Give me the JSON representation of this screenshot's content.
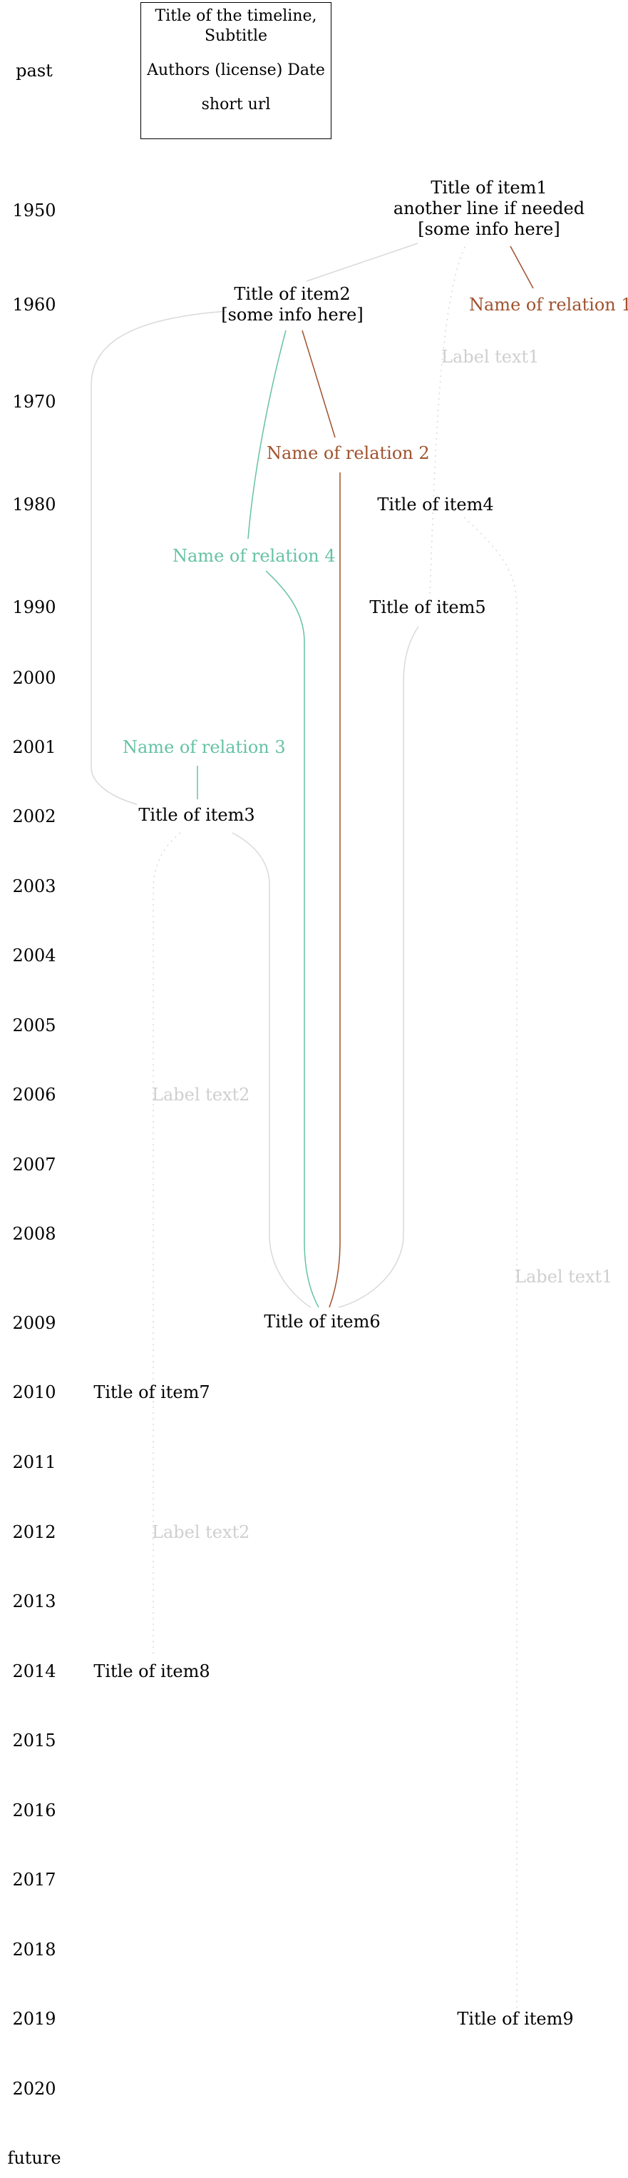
{
  "header": {
    "title_line1": "Title of the timeline,",
    "title_line2": "Subtitle",
    "authors": "Authors (license) Date",
    "url": "short url"
  },
  "years": {
    "past": "past",
    "y1950": "1950",
    "y1960": "1960",
    "y1970": "1970",
    "y1980": "1980",
    "y1990": "1990",
    "y2000": "2000",
    "y2001": "2001",
    "y2002": "2002",
    "y2003": "2003",
    "y2004": "2004",
    "y2005": "2005",
    "y2006": "2006",
    "y2007": "2007",
    "y2008": "2008",
    "y2009": "2009",
    "y2010": "2010",
    "y2011": "2011",
    "y2012": "2012",
    "y2013": "2013",
    "y2014": "2014",
    "y2015": "2015",
    "y2016": "2016",
    "y2017": "2017",
    "y2018": "2018",
    "y2019": "2019",
    "y2020": "2020",
    "future": "future"
  },
  "items": {
    "item1_line1": "Title of item1",
    "item1_line2": "another line if needed",
    "item1_line3": "[some info here]",
    "item2_line1": "Title of item2",
    "item2_line2": "[some info here]",
    "item3": "Title of item3",
    "item4": "Title of item4",
    "item5": "Title of item5",
    "item6": "Title of item6",
    "item7": "Title of item7",
    "item8": "Title of item8",
    "item9": "Title of item9"
  },
  "relations": {
    "rel1": "Name of relation 1",
    "rel2": "Name of relation 2",
    "rel3": "Name of relation 3",
    "rel4": "Name of relation 4",
    "label_text1": "Label text1",
    "label_text2": "Label text2"
  },
  "colors": {
    "gray_line": "#d9d9d9",
    "green": "#66c2a5",
    "brown": "#a0522d"
  }
}
